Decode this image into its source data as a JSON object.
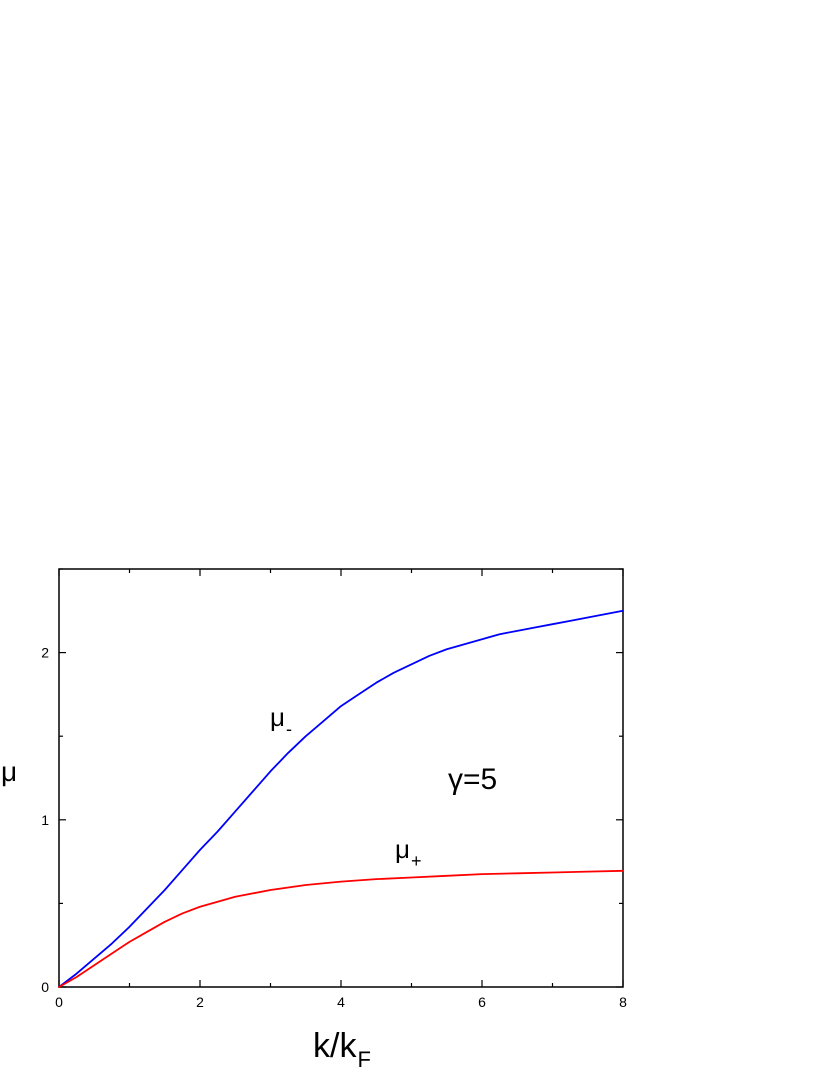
{
  "chart_data": {
    "type": "line",
    "xlabel": "k/k",
    "xlabel_sub": "F",
    "ylabel": "μ",
    "xlim": [
      0,
      8
    ],
    "ylim": [
      0,
      2.5
    ],
    "x_ticks": [
      "0",
      "2",
      "4",
      "6",
      "8"
    ],
    "y_ticks": [
      "0",
      "1",
      "2"
    ],
    "grid": false,
    "annotation": "γ=5",
    "series": [
      {
        "name": "μ",
        "sub": "-",
        "color": "#0000ff",
        "x": [
          0,
          0.25,
          0.5,
          0.75,
          1,
          1.25,
          1.5,
          1.75,
          2,
          2.25,
          2.5,
          2.75,
          3,
          3.25,
          3.5,
          3.75,
          4,
          4.25,
          4.5,
          4.75,
          5,
          5.25,
          5.5,
          5.75,
          6,
          6.25,
          6.5,
          6.75,
          7,
          7.25,
          7.5,
          7.75,
          8
        ],
        "y": [
          0,
          0.08,
          0.17,
          0.26,
          0.36,
          0.47,
          0.58,
          0.7,
          0.82,
          0.93,
          1.05,
          1.17,
          1.29,
          1.4,
          1.5,
          1.59,
          1.68,
          1.75,
          1.82,
          1.88,
          1.93,
          1.98,
          2.02,
          2.05,
          2.08,
          2.11,
          2.13,
          2.15,
          2.17,
          2.19,
          2.21,
          2.23,
          2.25
        ]
      },
      {
        "name": "μ",
        "sub": "+",
        "color": "#ff0000",
        "x": [
          0,
          0.25,
          0.5,
          0.75,
          1,
          1.25,
          1.5,
          1.75,
          2,
          2.5,
          3,
          3.5,
          4,
          4.5,
          5,
          5.5,
          6,
          6.5,
          7,
          7.5,
          8
        ],
        "y": [
          0,
          0.06,
          0.13,
          0.2,
          0.27,
          0.33,
          0.39,
          0.44,
          0.48,
          0.54,
          0.58,
          0.61,
          0.63,
          0.645,
          0.655,
          0.665,
          0.675,
          0.68,
          0.685,
          0.69,
          0.695
        ]
      }
    ]
  }
}
